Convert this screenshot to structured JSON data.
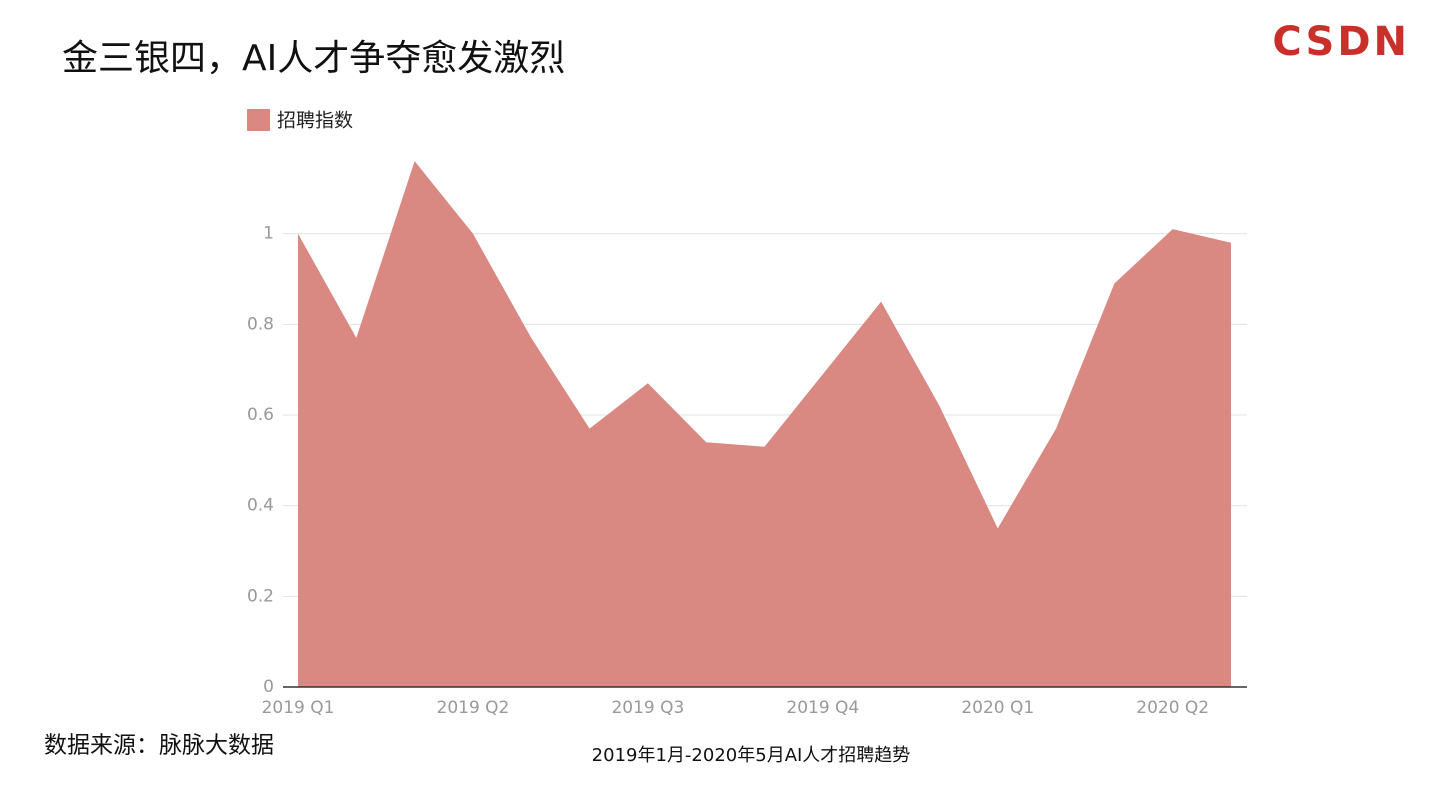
{
  "header": {
    "title": "金三银四，AI人才争夺愈发激烈",
    "logo": "CSDN"
  },
  "chart_data": {
    "type": "area",
    "categories": [
      "2019 Q1",
      null,
      null,
      "2019 Q2",
      null,
      null,
      "2019 Q3",
      null,
      null,
      "2019 Q4",
      null,
      null,
      "2020 Q1",
      null,
      null,
      "2020 Q2",
      null
    ],
    "series": [
      {
        "name": "招聘指数",
        "color": "#d98882",
        "values": [
          1.0,
          0.77,
          1.16,
          1.0,
          0.77,
          0.57,
          0.67,
          0.54,
          0.53,
          0.69,
          0.85,
          0.62,
          0.35,
          0.57,
          0.89,
          1.01,
          0.98
        ]
      }
    ],
    "ylim": [
      0,
      1.2
    ],
    "yticks": [
      0,
      0.2,
      0.4,
      0.6,
      0.8,
      1
    ],
    "grid": true,
    "x_label": "2019年1月-2020年5月AI人才招聘趋势"
  },
  "footer": {
    "source": "数据来源：脉脉大数据"
  }
}
